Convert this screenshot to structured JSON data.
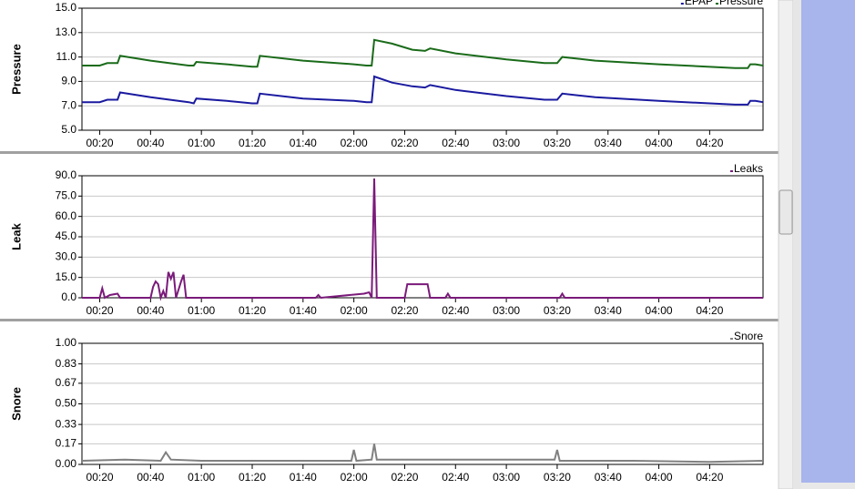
{
  "chart_data": [
    {
      "type": "line",
      "title": "Pressure",
      "x": [
        13,
        20,
        23,
        27,
        28,
        40,
        55,
        57,
        58,
        70,
        80,
        82,
        83,
        100,
        120,
        125,
        127,
        128,
        135,
        143,
        148,
        150,
        160,
        180,
        195,
        200,
        202,
        215,
        240,
        270,
        275,
        276,
        278,
        281
      ],
      "series": [
        {
          "name": "EPAP",
          "color": "#1a1aa0",
          "values": [
            7.3,
            7.3,
            7.5,
            7.5,
            8.1,
            7.7,
            7.3,
            7.2,
            7.6,
            7.4,
            7.2,
            7.2,
            8.0,
            7.6,
            7.4,
            7.3,
            7.3,
            9.4,
            8.9,
            8.6,
            8.5,
            8.7,
            8.3,
            7.8,
            7.5,
            7.5,
            8.0,
            7.7,
            7.4,
            7.1,
            7.1,
            7.4,
            7.4,
            7.3
          ]
        },
        {
          "name": "Pressure",
          "color": "#1a6b1a",
          "values": [
            10.3,
            10.3,
            10.5,
            10.5,
            11.1,
            10.7,
            10.3,
            10.3,
            10.6,
            10.4,
            10.2,
            10.2,
            11.1,
            10.7,
            10.4,
            10.3,
            10.3,
            12.4,
            12.1,
            11.6,
            11.5,
            11.7,
            11.3,
            10.8,
            10.5,
            10.5,
            11.0,
            10.7,
            10.4,
            10.1,
            10.1,
            10.4,
            10.4,
            10.3
          ]
        }
      ],
      "xlim": [
        13,
        281
      ],
      "xticks": [
        {
          "value": 20,
          "label": "00:20"
        },
        {
          "value": 40,
          "label": "00:40"
        },
        {
          "value": 60,
          "label": "01:00"
        },
        {
          "value": 80,
          "label": "01:20"
        },
        {
          "value": 100,
          "label": "01:40"
        },
        {
          "value": 120,
          "label": "02:00"
        },
        {
          "value": 140,
          "label": "02:20"
        },
        {
          "value": 160,
          "label": "02:40"
        },
        {
          "value": 180,
          "label": "03:00"
        },
        {
          "value": 200,
          "label": "03:20"
        },
        {
          "value": 220,
          "label": "03:40"
        },
        {
          "value": 240,
          "label": "04:00"
        },
        {
          "value": 260,
          "label": "04:20"
        }
      ],
      "ylim": [
        5,
        15
      ],
      "yticks": [
        {
          "value": 5,
          "label": "5.0"
        },
        {
          "value": 7,
          "label": "7.0"
        },
        {
          "value": 9,
          "label": "9.0"
        },
        {
          "value": 11,
          "label": "11.0"
        },
        {
          "value": 13,
          "label": "13.0"
        },
        {
          "value": 15,
          "label": "15.0"
        }
      ],
      "grid": true
    },
    {
      "type": "line",
      "title": "Leak",
      "x": [
        13,
        20,
        21,
        22,
        24,
        27,
        28,
        40,
        41,
        42,
        43,
        44,
        45,
        46,
        47,
        48,
        49,
        50,
        52,
        53,
        54,
        80,
        105,
        106,
        107,
        124,
        126,
        127,
        128,
        129,
        140,
        141,
        149,
        150,
        156,
        157,
        158,
        201,
        202,
        203,
        281
      ],
      "series": [
        {
          "name": "Leaks",
          "color": "#7a1a7a",
          "values": [
            0,
            0,
            7,
            0,
            2,
            3,
            0,
            0,
            8,
            12,
            10,
            0,
            5,
            0,
            19,
            14,
            19,
            0,
            12,
            17,
            0,
            0,
            0,
            2,
            0,
            3,
            4,
            0,
            88,
            0,
            0,
            10,
            10,
            0,
            0,
            3,
            0,
            0,
            3,
            0,
            0
          ]
        }
      ],
      "xlim": [
        13,
        281
      ],
      "xticks": [
        {
          "value": 20,
          "label": "00:20"
        },
        {
          "value": 40,
          "label": "00:40"
        },
        {
          "value": 60,
          "label": "01:00"
        },
        {
          "value": 80,
          "label": "01:20"
        },
        {
          "value": 100,
          "label": "01:40"
        },
        {
          "value": 120,
          "label": "02:00"
        },
        {
          "value": 140,
          "label": "02:20"
        },
        {
          "value": 160,
          "label": "02:40"
        },
        {
          "value": 180,
          "label": "03:00"
        },
        {
          "value": 200,
          "label": "03:20"
        },
        {
          "value": 220,
          "label": "03:40"
        },
        {
          "value": 240,
          "label": "04:00"
        },
        {
          "value": 260,
          "label": "04:20"
        }
      ],
      "ylim": [
        0,
        90
      ],
      "yticks": [
        {
          "value": 0,
          "label": "0.0"
        },
        {
          "value": 15,
          "label": "15.0"
        },
        {
          "value": 30,
          "label": "30.0"
        },
        {
          "value": 45,
          "label": "45.0"
        },
        {
          "value": 60,
          "label": "60.0"
        },
        {
          "value": 75,
          "label": "75.0"
        },
        {
          "value": 90,
          "label": "90.0"
        }
      ],
      "grid": true
    },
    {
      "type": "line",
      "title": "Snore",
      "x": [
        13,
        30,
        44,
        46,
        48,
        60,
        90,
        119,
        120,
        121,
        127,
        128,
        129,
        140,
        170,
        199,
        200,
        201,
        230,
        260,
        281
      ],
      "series": [
        {
          "name": "Snore",
          "color": "#808080",
          "values": [
            0.03,
            0.04,
            0.03,
            0.1,
            0.04,
            0.03,
            0.03,
            0.03,
            0.12,
            0.03,
            0.04,
            0.17,
            0.04,
            0.04,
            0.04,
            0.04,
            0.12,
            0.03,
            0.03,
            0.02,
            0.03
          ]
        }
      ],
      "xlim": [
        13,
        281
      ],
      "xticks": [
        {
          "value": 20,
          "label": "00:20"
        },
        {
          "value": 40,
          "label": "00:40"
        },
        {
          "value": 60,
          "label": "01:00"
        },
        {
          "value": 80,
          "label": "01:20"
        },
        {
          "value": 100,
          "label": "01:40"
        },
        {
          "value": 120,
          "label": "02:00"
        },
        {
          "value": 140,
          "label": "02:20"
        },
        {
          "value": 160,
          "label": "02:40"
        },
        {
          "value": 180,
          "label": "03:00"
        },
        {
          "value": 200,
          "label": "03:20"
        },
        {
          "value": 220,
          "label": "03:40"
        },
        {
          "value": 240,
          "label": "04:00"
        },
        {
          "value": 260,
          "label": "04:20"
        }
      ],
      "ylim": [
        0,
        1
      ],
      "yticks": [
        {
          "value": 0,
          "label": "0.00"
        },
        {
          "value": 0.17,
          "label": "0.17"
        },
        {
          "value": 0.33,
          "label": "0.33"
        },
        {
          "value": 0.5,
          "label": "0.50"
        },
        {
          "value": 0.67,
          "label": "0.67"
        },
        {
          "value": 0.83,
          "label": "0.83"
        },
        {
          "value": 1,
          "label": "1.00"
        }
      ],
      "grid": true
    }
  ]
}
